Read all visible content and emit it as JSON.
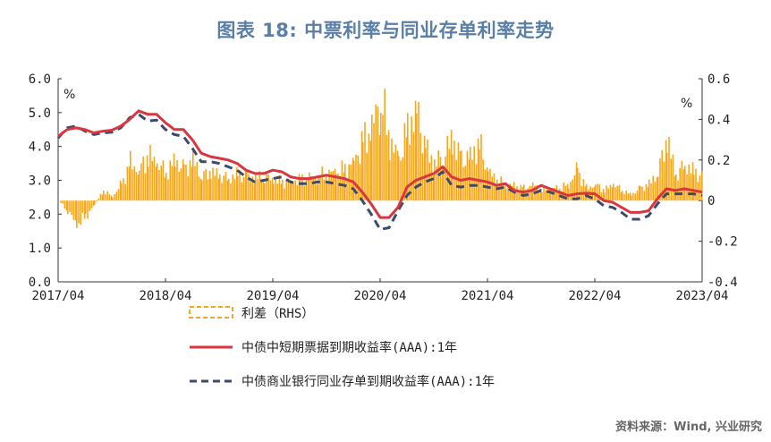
{
  "title": "图表 18: 中票利率与同业存单利率走势",
  "source": "资料来源：Wind, 兴业研究",
  "chart_data": {
    "type": "line",
    "left_unit": "%",
    "right_unit": "%",
    "x_labels": [
      "2017/04",
      "2018/04",
      "2019/04",
      "2020/04",
      "2021/04",
      "2022/04",
      "2023/04"
    ],
    "x_range": [
      "2017-04",
      "2023-04"
    ],
    "y_left": {
      "ticks": [
        "6.0",
        "5.0",
        "4.0",
        "3.0",
        "2.0",
        "1.0",
        "0.0"
      ],
      "range": [
        0,
        6
      ]
    },
    "y_right": {
      "ticks": [
        "0.6",
        "0.4",
        "0.2",
        "0",
        "-0.2",
        "-0.4"
      ],
      "range": [
        -0.4,
        0.6
      ]
    },
    "legend_position": "bottom",
    "series": [
      {
        "name": "利差（RHS）",
        "axis": "right",
        "kind": "area",
        "color": "#f5a623",
        "points": [
          [
            "2017-04",
            0.0
          ],
          [
            "2017-05",
            -0.05
          ],
          [
            "2017-06",
            -0.12
          ],
          [
            "2017-07",
            -0.08
          ],
          [
            "2017-08",
            -0.02
          ],
          [
            "2017-09",
            0.05
          ],
          [
            "2017-10",
            0.02
          ],
          [
            "2017-11",
            0.08
          ],
          [
            "2017-12",
            0.18
          ],
          [
            "2018-01",
            0.15
          ],
          [
            "2018-02",
            0.22
          ],
          [
            "2018-03",
            0.18
          ],
          [
            "2018-04",
            0.14
          ],
          [
            "2018-05",
            0.2
          ],
          [
            "2018-06",
            0.15
          ],
          [
            "2018-07",
            0.2
          ],
          [
            "2018-08",
            0.12
          ],
          [
            "2018-09",
            0.14
          ],
          [
            "2018-10",
            0.12
          ],
          [
            "2018-11",
            0.11
          ],
          [
            "2018-12",
            0.13
          ],
          [
            "2019-01",
            0.12
          ],
          [
            "2019-02",
            0.11
          ],
          [
            "2019-03",
            0.12
          ],
          [
            "2019-04",
            0.1
          ],
          [
            "2019-05",
            0.09
          ],
          [
            "2019-06",
            0.1
          ],
          [
            "2019-07",
            0.1
          ],
          [
            "2019-08",
            0.11
          ],
          [
            "2019-09",
            0.12
          ],
          [
            "2019-10",
            0.13
          ],
          [
            "2019-11",
            0.14
          ],
          [
            "2019-12",
            0.15
          ],
          [
            "2020-01",
            0.2
          ],
          [
            "2020-02",
            0.28
          ],
          [
            "2020-03",
            0.35
          ],
          [
            "2020-04",
            0.5
          ],
          [
            "2020-05",
            0.3
          ],
          [
            "2020-06",
            0.2
          ],
          [
            "2020-07",
            0.35
          ],
          [
            "2020-08",
            0.45
          ],
          [
            "2020-09",
            0.25
          ],
          [
            "2020-10",
            0.18
          ],
          [
            "2020-11",
            0.22
          ],
          [
            "2020-12",
            0.3
          ],
          [
            "2021-01",
            0.2
          ],
          [
            "2021-02",
            0.22
          ],
          [
            "2021-03",
            0.28
          ],
          [
            "2021-04",
            0.14
          ],
          [
            "2021-05",
            0.1
          ],
          [
            "2021-06",
            0.08
          ],
          [
            "2021-07",
            0.07
          ],
          [
            "2021-08",
            0.06
          ],
          [
            "2021-09",
            0.08
          ],
          [
            "2021-10",
            0.05
          ],
          [
            "2021-11",
            0.06
          ],
          [
            "2021-12",
            0.06
          ],
          [
            "2022-01",
            0.08
          ],
          [
            "2022-02",
            0.15
          ],
          [
            "2022-03",
            0.06
          ],
          [
            "2022-04",
            0.08
          ],
          [
            "2022-05",
            0.05
          ],
          [
            "2022-06",
            0.08
          ],
          [
            "2022-07",
            0.05
          ],
          [
            "2022-08",
            0.03
          ],
          [
            "2022-09",
            0.06
          ],
          [
            "2022-10",
            0.08
          ],
          [
            "2022-11",
            0.14
          ],
          [
            "2022-12",
            0.3
          ],
          [
            "2023-01",
            0.12
          ],
          [
            "2023-02",
            0.18
          ],
          [
            "2023-03",
            0.14
          ],
          [
            "2023-04",
            0.12
          ]
        ]
      },
      {
        "name": "中债中短期票据到期收益率(AAA):1年",
        "axis": "left",
        "kind": "line",
        "color": "#d9363e",
        "points": [
          [
            "2017-04",
            4.3
          ],
          [
            "2017-05",
            4.5
          ],
          [
            "2017-06",
            4.55
          ],
          [
            "2017-07",
            4.5
          ],
          [
            "2017-08",
            4.4
          ],
          [
            "2017-09",
            4.45
          ],
          [
            "2017-10",
            4.48
          ],
          [
            "2017-11",
            4.6
          ],
          [
            "2017-12",
            4.8
          ],
          [
            "2018-01",
            5.05
          ],
          [
            "2018-02",
            4.95
          ],
          [
            "2018-03",
            4.95
          ],
          [
            "2018-04",
            4.7
          ],
          [
            "2018-05",
            4.5
          ],
          [
            "2018-06",
            4.5
          ],
          [
            "2018-07",
            4.2
          ],
          [
            "2018-08",
            3.8
          ],
          [
            "2018-09",
            3.7
          ],
          [
            "2018-10",
            3.65
          ],
          [
            "2018-11",
            3.6
          ],
          [
            "2018-12",
            3.5
          ],
          [
            "2019-01",
            3.3
          ],
          [
            "2019-02",
            3.2
          ],
          [
            "2019-03",
            3.2
          ],
          [
            "2019-04",
            3.3
          ],
          [
            "2019-05",
            3.25
          ],
          [
            "2019-06",
            3.1
          ],
          [
            "2019-07",
            3.05
          ],
          [
            "2019-08",
            3.05
          ],
          [
            "2019-09",
            3.1
          ],
          [
            "2019-10",
            3.15
          ],
          [
            "2019-11",
            3.1
          ],
          [
            "2019-12",
            3.05
          ],
          [
            "2020-01",
            2.95
          ],
          [
            "2020-02",
            2.65
          ],
          [
            "2020-03",
            2.3
          ],
          [
            "2020-04",
            1.9
          ],
          [
            "2020-05",
            1.9
          ],
          [
            "2020-06",
            2.2
          ],
          [
            "2020-07",
            2.8
          ],
          [
            "2020-08",
            3.0
          ],
          [
            "2020-09",
            3.1
          ],
          [
            "2020-10",
            3.2
          ],
          [
            "2020-11",
            3.4
          ],
          [
            "2020-12",
            3.1
          ],
          [
            "2021-01",
            3.0
          ],
          [
            "2021-02",
            3.05
          ],
          [
            "2021-03",
            3.0
          ],
          [
            "2021-04",
            2.95
          ],
          [
            "2021-05",
            2.85
          ],
          [
            "2021-06",
            2.9
          ],
          [
            "2021-07",
            2.7
          ],
          [
            "2021-08",
            2.65
          ],
          [
            "2021-09",
            2.7
          ],
          [
            "2021-10",
            2.85
          ],
          [
            "2021-11",
            2.75
          ],
          [
            "2021-12",
            2.65
          ],
          [
            "2022-01",
            2.55
          ],
          [
            "2022-02",
            2.6
          ],
          [
            "2022-03",
            2.62
          ],
          [
            "2022-04",
            2.6
          ],
          [
            "2022-05",
            2.4
          ],
          [
            "2022-06",
            2.35
          ],
          [
            "2022-07",
            2.2
          ],
          [
            "2022-08",
            2.05
          ],
          [
            "2022-09",
            2.05
          ],
          [
            "2022-10",
            2.1
          ],
          [
            "2022-11",
            2.45
          ],
          [
            "2022-12",
            2.75
          ],
          [
            "2023-01",
            2.7
          ],
          [
            "2023-02",
            2.75
          ],
          [
            "2023-03",
            2.7
          ],
          [
            "2023-04",
            2.65
          ]
        ]
      },
      {
        "name": "中债商业银行同业存单到期收益率(AAA):1年",
        "axis": "left",
        "kind": "dashed",
        "color": "#3c4a6b",
        "points": [
          [
            "2017-04",
            4.25
          ],
          [
            "2017-05",
            4.55
          ],
          [
            "2017-06",
            4.6
          ],
          [
            "2017-07",
            4.45
          ],
          [
            "2017-08",
            4.35
          ],
          [
            "2017-09",
            4.4
          ],
          [
            "2017-10",
            4.42
          ],
          [
            "2017-11",
            4.55
          ],
          [
            "2017-12",
            4.85
          ],
          [
            "2018-01",
            4.95
          ],
          [
            "2018-02",
            4.75
          ],
          [
            "2018-03",
            4.78
          ],
          [
            "2018-04",
            4.5
          ],
          [
            "2018-05",
            4.35
          ],
          [
            "2018-06",
            4.3
          ],
          [
            "2018-07",
            3.95
          ],
          [
            "2018-08",
            3.55
          ],
          [
            "2018-09",
            3.55
          ],
          [
            "2018-10",
            3.5
          ],
          [
            "2018-11",
            3.4
          ],
          [
            "2018-12",
            3.3
          ],
          [
            "2019-01",
            3.1
          ],
          [
            "2019-02",
            2.95
          ],
          [
            "2019-03",
            3.0
          ],
          [
            "2019-04",
            3.05
          ],
          [
            "2019-05",
            3.1
          ],
          [
            "2019-06",
            2.95
          ],
          [
            "2019-07",
            2.9
          ],
          [
            "2019-08",
            2.9
          ],
          [
            "2019-09",
            2.95
          ],
          [
            "2019-10",
            2.95
          ],
          [
            "2019-11",
            2.9
          ],
          [
            "2019-12",
            2.85
          ],
          [
            "2020-01",
            2.75
          ],
          [
            "2020-02",
            2.4
          ],
          [
            "2020-03",
            2.0
          ],
          [
            "2020-04",
            1.55
          ],
          [
            "2020-05",
            1.6
          ],
          [
            "2020-06",
            2.1
          ],
          [
            "2020-07",
            2.55
          ],
          [
            "2020-08",
            2.8
          ],
          [
            "2020-09",
            2.95
          ],
          [
            "2020-10",
            3.05
          ],
          [
            "2020-11",
            3.25
          ],
          [
            "2020-12",
            2.85
          ],
          [
            "2021-01",
            2.8
          ],
          [
            "2021-02",
            2.85
          ],
          [
            "2021-03",
            2.85
          ],
          [
            "2021-04",
            2.8
          ],
          [
            "2021-05",
            2.75
          ],
          [
            "2021-06",
            2.8
          ],
          [
            "2021-07",
            2.65
          ],
          [
            "2021-08",
            2.55
          ],
          [
            "2021-09",
            2.6
          ],
          [
            "2021-10",
            2.7
          ],
          [
            "2021-11",
            2.65
          ],
          [
            "2021-12",
            2.55
          ],
          [
            "2022-01",
            2.45
          ],
          [
            "2022-02",
            2.45
          ],
          [
            "2022-03",
            2.55
          ],
          [
            "2022-04",
            2.45
          ],
          [
            "2022-05",
            2.25
          ],
          [
            "2022-06",
            2.2
          ],
          [
            "2022-07",
            2.05
          ],
          [
            "2022-08",
            1.85
          ],
          [
            "2022-09",
            1.85
          ],
          [
            "2022-10",
            1.95
          ],
          [
            "2022-11",
            2.3
          ],
          [
            "2022-12",
            2.6
          ],
          [
            "2023-01",
            2.6
          ],
          [
            "2023-02",
            2.6
          ],
          [
            "2023-03",
            2.6
          ],
          [
            "2023-04",
            2.55
          ]
        ]
      }
    ]
  }
}
